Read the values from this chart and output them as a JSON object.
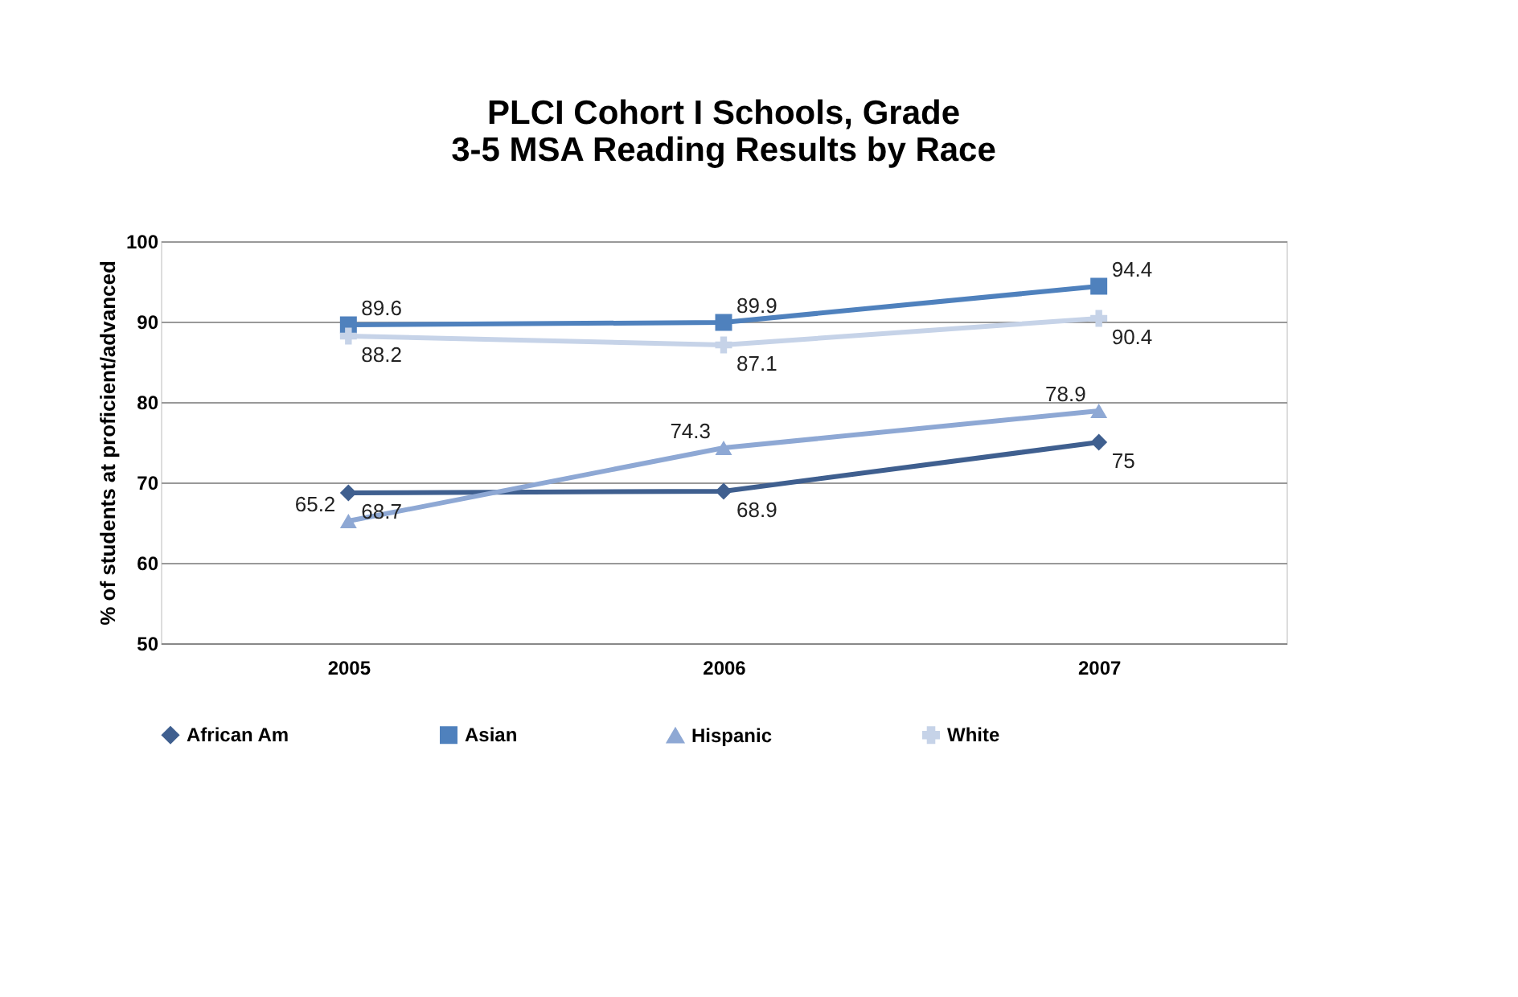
{
  "chart_data": {
    "type": "line",
    "title": "PLCI Cohort I Schools, Grade 3-5 MSA Reading Results by Race",
    "ylabel": "% of students at proficient/advanced",
    "categories": [
      "2005",
      "2006",
      "2007"
    ],
    "series": [
      {
        "name": "African Am",
        "color": "#3f5f8f",
        "marker": "diamond",
        "values": [
          68.7,
          68.9,
          75
        ]
      },
      {
        "name": "Asian",
        "color": "#4f81bd",
        "marker": "square",
        "values": [
          89.6,
          89.9,
          94.4
        ]
      },
      {
        "name": "Hispanic",
        "color": "#8ea8d4",
        "marker": "triangle",
        "values": [
          65.2,
          74.3,
          78.9
        ]
      },
      {
        "name": "White",
        "color": "#c6d3e8",
        "marker": "cross",
        "values": [
          88.2,
          87.1,
          90.4
        ]
      }
    ],
    "ylim": [
      50,
      100
    ],
    "yticks": [
      50,
      60,
      70,
      80,
      90,
      100
    ],
    "grid": "y",
    "legend": "bottom",
    "data_labels": true,
    "line_style": "solid"
  }
}
